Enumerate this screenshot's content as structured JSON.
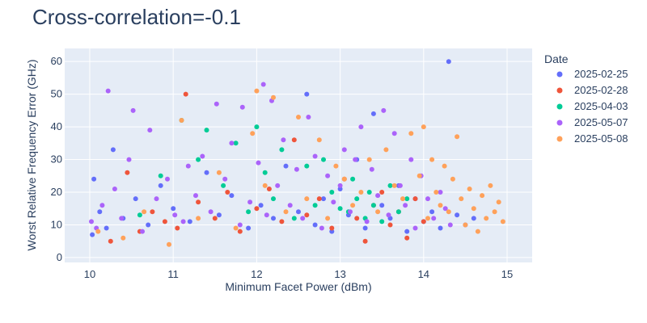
{
  "chart_data": {
    "type": "scatter",
    "title": "Cross-correlation=-0.1",
    "xlabel": "Minimum Facet Power (dBm)",
    "ylabel": "Worst Relative Frequency Error (GHz)",
    "xlim": [
      9.7,
      15.3
    ],
    "ylim": [
      -1.5,
      64
    ],
    "x_ticks": [
      10,
      11,
      12,
      13,
      14,
      15
    ],
    "y_ticks": [
      0,
      10,
      20,
      30,
      40,
      50,
      60
    ],
    "grid": true,
    "legend": {
      "title": "Date",
      "placement": "right"
    },
    "series": [
      {
        "name": "2025-02-25",
        "color": "#636efa",
        "x": [
          10.03,
          10.05,
          10.12,
          10.2,
          10.28,
          10.4,
          10.55,
          10.7,
          10.85,
          11.0,
          11.2,
          11.4,
          11.55,
          11.7,
          11.9,
          12.05,
          12.2,
          12.35,
          12.5,
          12.6,
          12.7,
          12.8,
          12.9,
          13.0,
          13.1,
          13.2,
          13.3,
          13.4,
          13.5,
          13.6,
          13.7,
          13.8,
          13.9,
          14.0,
          14.1,
          14.2,
          14.3,
          14.4,
          14.5,
          14.6
        ],
        "y": [
          7,
          24,
          14,
          9,
          33,
          12,
          18,
          10,
          22,
          15,
          11,
          26,
          13,
          19,
          9,
          16,
          12,
          28,
          14,
          50,
          10,
          18,
          8,
          21,
          13,
          30,
          9,
          44,
          16,
          12,
          22,
          8,
          18,
          11,
          14,
          9,
          60,
          13,
          10,
          12
        ]
      },
      {
        "name": "2025-02-28",
        "color": "#ef553b",
        "x": [
          10.25,
          10.45,
          10.6,
          10.75,
          10.9,
          11.05,
          11.15,
          11.3,
          11.5,
          11.65,
          11.8,
          12.0,
          12.15,
          12.3,
          12.45,
          12.6,
          12.75,
          12.9,
          13.05,
          13.2,
          13.3,
          13.4,
          13.5,
          13.6,
          13.7,
          13.8,
          13.9,
          14.0
        ],
        "y": [
          5,
          26,
          8,
          14,
          11,
          9,
          50,
          17,
          12,
          20,
          8,
          15,
          21,
          11,
          36,
          13,
          18,
          9,
          24,
          12,
          5,
          16,
          20,
          10,
          14,
          6,
          18,
          11
        ]
      },
      {
        "name": "2025-04-03",
        "color": "#00cc96",
        "x": [
          10.6,
          10.85,
          11.1,
          11.3,
          11.4,
          11.6,
          11.75,
          11.9,
          12.0,
          12.1,
          12.2,
          12.3,
          12.45,
          12.6,
          12.7,
          12.8,
          12.9,
          13.0,
          13.1,
          13.15,
          13.2,
          13.3,
          13.35,
          13.4,
          13.5,
          13.6,
          13.7,
          13.8
        ],
        "y": [
          13,
          25,
          42,
          30,
          39,
          22,
          35,
          14,
          40,
          26,
          18,
          33,
          12,
          28,
          16,
          30,
          20,
          15,
          14,
          24,
          18,
          12,
          20,
          16,
          11,
          22,
          14,
          18
        ]
      },
      {
        "name": "2025-05-07",
        "color": "#ab63fa",
        "x": [
          10.02,
          10.08,
          10.15,
          10.22,
          10.3,
          10.38,
          10.47,
          10.52,
          10.63,
          10.72,
          10.8,
          10.93,
          11.02,
          11.12,
          11.18,
          11.27,
          11.35,
          11.45,
          11.52,
          11.62,
          11.7,
          11.8,
          11.83,
          11.92,
          12.02,
          12.08,
          12.12,
          12.18,
          12.25,
          12.32,
          12.4,
          12.48,
          12.55,
          12.62,
          12.7,
          12.78,
          12.85,
          12.92,
          13.0,
          13.05,
          13.12,
          13.18,
          13.25,
          13.32,
          13.38,
          13.45,
          13.52,
          13.58,
          13.65,
          13.72,
          13.78,
          13.85,
          13.9,
          13.97,
          14.05,
          14.12,
          14.2,
          14.26,
          14.32
        ],
        "y": [
          11,
          9,
          16,
          51,
          21,
          12,
          30,
          45,
          8,
          39,
          18,
          24,
          13,
          11,
          28,
          19,
          31,
          14,
          47,
          24,
          35,
          10,
          46,
          17,
          29,
          53,
          13,
          48,
          22,
          36,
          16,
          27,
          12,
          43,
          31,
          9,
          25,
          17,
          22,
          33,
          14,
          30,
          40,
          11,
          27,
          19,
          45,
          13,
          38,
          22,
          16,
          30,
          9,
          25,
          18,
          12,
          20,
          15,
          10
        ]
      },
      {
        "name": "2025-05-08",
        "color": "#ffa15a",
        "x": [
          10.1,
          10.4,
          10.65,
          10.95,
          11.1,
          11.3,
          11.55,
          11.75,
          11.95,
          12.0,
          12.1,
          12.2,
          12.35,
          12.5,
          12.6,
          12.75,
          12.85,
          12.95,
          13.05,
          13.15,
          13.25,
          13.35,
          13.45,
          13.55,
          13.65,
          13.75,
          13.85,
          13.95,
          14.0,
          14.05,
          14.1,
          14.15,
          14.2,
          14.25,
          14.3,
          14.35,
          14.4,
          14.45,
          14.5,
          14.55,
          14.6,
          14.65,
          14.7,
          14.75,
          14.8,
          14.85,
          14.9,
          14.95
        ],
        "y": [
          8,
          6,
          14,
          4,
          42,
          12,
          26,
          9,
          38,
          51,
          22,
          49,
          14,
          43,
          18,
          36,
          12,
          28,
          24,
          16,
          20,
          30,
          14,
          33,
          22,
          18,
          38,
          25,
          40,
          12,
          30,
          20,
          16,
          28,
          14,
          24,
          37,
          18,
          10,
          21,
          15,
          8,
          19,
          12,
          22,
          14,
          17,
          11
        ]
      }
    ]
  }
}
